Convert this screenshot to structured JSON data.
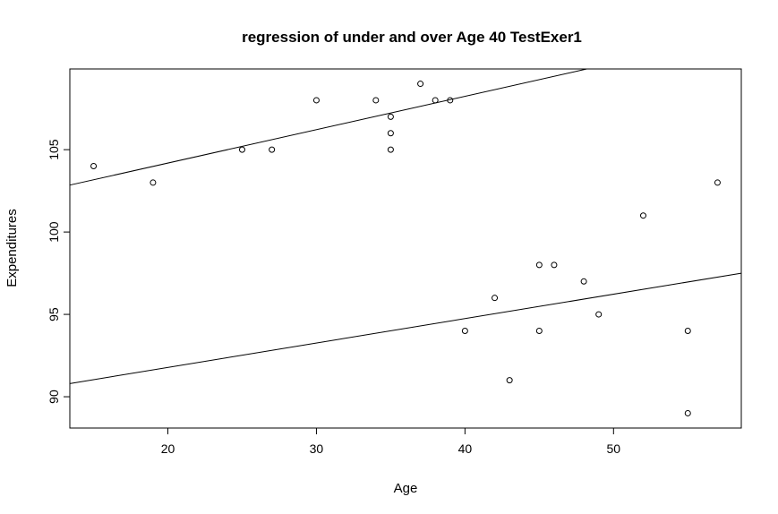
{
  "chart_data": {
    "type": "scatter",
    "title": "regression of under and over Age 40 TestExer1",
    "xlabel": "Age",
    "ylabel": "Expenditures",
    "xlim": [
      13.4,
      58.6
    ],
    "ylim": [
      88.1,
      109.9
    ],
    "x_ticks": [
      20,
      30,
      40,
      50
    ],
    "y_ticks": [
      90,
      95,
      100,
      105
    ],
    "x_tick_labels": [
      "20",
      "30",
      "40",
      "50"
    ],
    "y_tick_labels": [
      "90",
      "95",
      "100",
      "105"
    ],
    "grid": false,
    "legend": "none",
    "point_color": "#000000",
    "line_color": "#000000",
    "points": [
      {
        "x": 15,
        "y": 104
      },
      {
        "x": 19,
        "y": 103
      },
      {
        "x": 25,
        "y": 105
      },
      {
        "x": 27,
        "y": 105
      },
      {
        "x": 30,
        "y": 108
      },
      {
        "x": 34,
        "y": 108
      },
      {
        "x": 35,
        "y": 107
      },
      {
        "x": 35,
        "y": 106
      },
      {
        "x": 35,
        "y": 105
      },
      {
        "x": 37,
        "y": 109
      },
      {
        "x": 38,
        "y": 108
      },
      {
        "x": 39,
        "y": 108
      },
      {
        "x": 40,
        "y": 94
      },
      {
        "x": 42,
        "y": 96
      },
      {
        "x": 43,
        "y": 91
      },
      {
        "x": 45,
        "y": 98
      },
      {
        "x": 45,
        "y": 94
      },
      {
        "x": 46,
        "y": 98
      },
      {
        "x": 48,
        "y": 97
      },
      {
        "x": 49,
        "y": 95
      },
      {
        "x": 52,
        "y": 101
      },
      {
        "x": 55,
        "y": 94
      },
      {
        "x": 55,
        "y": 89
      },
      {
        "x": 57,
        "y": 103
      }
    ],
    "regression_lines": [
      {
        "x": [
          13.4,
          48.2
        ],
        "y": [
          102.85,
          109.9
        ]
      },
      {
        "x": [
          13.4,
          58.6
        ],
        "y": [
          90.8,
          97.5
        ]
      }
    ]
  }
}
